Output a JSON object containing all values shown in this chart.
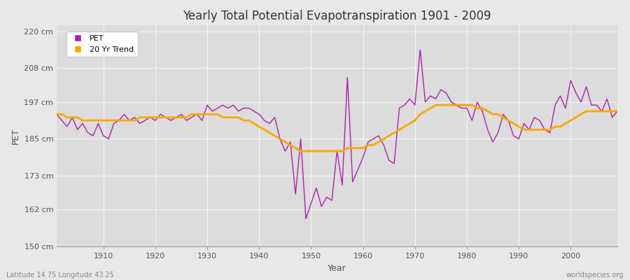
{
  "title": "Yearly Total Potential Evapotranspiration 1901 - 2009",
  "xlabel": "Year",
  "ylabel": "PET",
  "bottom_left_label": "Latitude 14.75 Longitude 43.25",
  "bottom_right_label": "worldspecies.org",
  "pet_color": "#AA22AA",
  "trend_color": "#FFA500",
  "background_color": "#E8E8E8",
  "plot_bg_color": "#DCDCDC",
  "grid_color": "#FFFFFF",
  "ylim": [
    150,
    222
  ],
  "yticks": [
    150,
    162,
    173,
    185,
    197,
    208,
    220
  ],
  "ytick_labels": [
    "150 cm",
    "162 cm",
    "173 cm",
    "185 cm",
    "197 cm",
    "208 cm",
    "220 cm"
  ],
  "xlim": [
    1901,
    2009
  ],
  "xticks": [
    1910,
    1920,
    1930,
    1940,
    1950,
    1960,
    1970,
    1980,
    1990,
    2000
  ],
  "years": [
    1901,
    1902,
    1903,
    1904,
    1905,
    1906,
    1907,
    1908,
    1909,
    1910,
    1911,
    1912,
    1913,
    1914,
    1915,
    1916,
    1917,
    1918,
    1919,
    1920,
    1921,
    1922,
    1923,
    1924,
    1925,
    1926,
    1927,
    1928,
    1929,
    1930,
    1931,
    1932,
    1933,
    1934,
    1935,
    1936,
    1937,
    1938,
    1939,
    1940,
    1941,
    1942,
    1943,
    1944,
    1945,
    1946,
    1947,
    1948,
    1949,
    1950,
    1951,
    1952,
    1953,
    1954,
    1955,
    1956,
    1957,
    1958,
    1959,
    1960,
    1961,
    1962,
    1963,
    1964,
    1965,
    1966,
    1967,
    1968,
    1969,
    1970,
    1971,
    1972,
    1973,
    1974,
    1975,
    1976,
    1977,
    1978,
    1979,
    1980,
    1981,
    1982,
    1983,
    1984,
    1985,
    1986,
    1987,
    1988,
    1989,
    1990,
    1991,
    1992,
    1993,
    1994,
    1995,
    1996,
    1997,
    1998,
    1999,
    2000,
    2001,
    2002,
    2003,
    2004,
    2005,
    2006,
    2007,
    2008,
    2009
  ],
  "pet_values": [
    193,
    191,
    189,
    192,
    188,
    190,
    187,
    186,
    190,
    186,
    185,
    190,
    191,
    193,
    191,
    192,
    190,
    191,
    192,
    191,
    193,
    192,
    191,
    192,
    193,
    191,
    192,
    193,
    191,
    196,
    194,
    195,
    196,
    195,
    196,
    194,
    195,
    195,
    194,
    193,
    191,
    190,
    192,
    185,
    181,
    184,
    167,
    185,
    159,
    164,
    169,
    163,
    166,
    165,
    181,
    170,
    205,
    171,
    175,
    179,
    184,
    185,
    186,
    183,
    178,
    177,
    195,
    196,
    198,
    196,
    214,
    197,
    199,
    198,
    201,
    200,
    197,
    196,
    195,
    195,
    191,
    197,
    194,
    188,
    184,
    187,
    193,
    191,
    186,
    185,
    190,
    188,
    192,
    191,
    188,
    187,
    196,
    199,
    195,
    204,
    200,
    197,
    202,
    196,
    196,
    194,
    198,
    192,
    194
  ],
  "trend_values": [
    193,
    193,
    192,
    192,
    192,
    191,
    191,
    191,
    191,
    191,
    191,
    191,
    191,
    191,
    191,
    191,
    192,
    192,
    192,
    192,
    192,
    192,
    192,
    192,
    192,
    192,
    193,
    193,
    193,
    193,
    193,
    193,
    192,
    192,
    192,
    192,
    191,
    191,
    190,
    189,
    188,
    187,
    186,
    185,
    184,
    183,
    182,
    181,
    181,
    181,
    181,
    181,
    181,
    181,
    181,
    181,
    182,
    182,
    182,
    182,
    183,
    183,
    184,
    185,
    186,
    187,
    188,
    189,
    190,
    191,
    193,
    194,
    195,
    196,
    196,
    196,
    196,
    196,
    196,
    196,
    196,
    195,
    195,
    194,
    193,
    193,
    192,
    191,
    190,
    189,
    188,
    188,
    188,
    188,
    188,
    188,
    189,
    189,
    190,
    191,
    192,
    193,
    194,
    194,
    194,
    194,
    194,
    194,
    194
  ]
}
